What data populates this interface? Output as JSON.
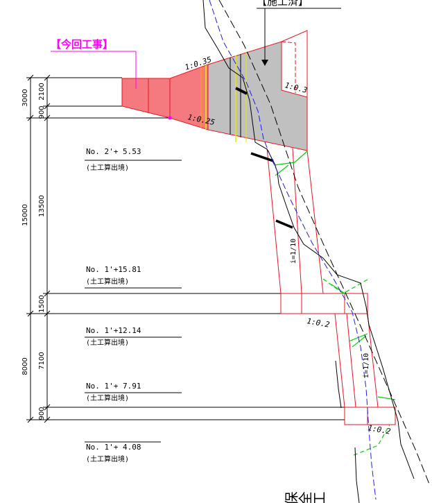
{
  "callouts": {
    "current_work": "【今回工事】",
    "completed": "【施工済】"
  },
  "slopes": {
    "top_left": "1:0.35",
    "bottom_left": "1:0.25",
    "right_upper": "1:0.3",
    "middle": "1:0.2",
    "lower": "1:0.2",
    "gradient_upper": "i=1/10",
    "gradient_lower": "i=1/10"
  },
  "stations": [
    {
      "station": "No. 2'+ 5.53",
      "note": "(土工算出境)"
    },
    {
      "station": "No. 1'+15.81",
      "note": "(土工算出境)"
    },
    {
      "station": "No. 1'+12.14",
      "note": "(土工算出境)"
    },
    {
      "station": "No. 1'+ 7.91",
      "note": "(土工算出境)"
    },
    {
      "station": "No. 1'+ 4.08",
      "note": "(土工算出境)"
    }
  ],
  "dimensions": {
    "outer": [
      "3000",
      "15000",
      "8000"
    ],
    "inner": [
      "2100",
      "900",
      "13500",
      "1500",
      "7100",
      "900"
    ]
  },
  "vertical_title": "保全工",
  "colors": {
    "red_line": "#e8141e",
    "red_fill": "#f47a80",
    "gray_fill": "#c0c0c0",
    "magenta": "#ff00ff",
    "blue_dash": "#1c1cf0",
    "green": "#00d400",
    "yellow": "#e8e800",
    "orange": "#ff9a1a"
  }
}
